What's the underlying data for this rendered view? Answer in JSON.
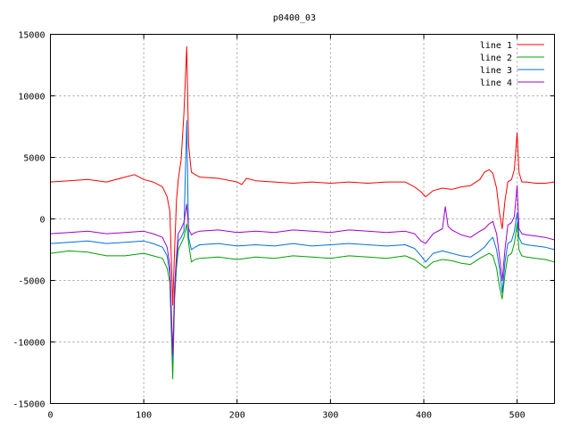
{
  "chart_data": {
    "type": "line",
    "title": "p0400_03",
    "xlabel": "",
    "ylabel": "",
    "xlim": [
      0,
      540
    ],
    "ylim": [
      -15000,
      15000
    ],
    "xticks": [
      0,
      100,
      200,
      300,
      400,
      500
    ],
    "yticks": [
      -15000,
      -10000,
      -5000,
      0,
      5000,
      10000,
      15000
    ],
    "grid": true,
    "legend_position": "top-right",
    "series": [
      {
        "name": "line 1",
        "color": "#ff0000",
        "x": [
          0,
          20,
          40,
          60,
          80,
          90,
          100,
          110,
          120,
          125,
          128,
          131,
          133,
          135,
          137,
          140,
          143,
          146,
          148,
          151,
          155,
          160,
          180,
          200,
          205,
          210,
          220,
          240,
          260,
          280,
          300,
          320,
          340,
          360,
          380,
          390,
          397,
          402,
          410,
          420,
          430,
          440,
          450,
          460,
          465,
          470,
          474,
          478,
          481,
          484,
          487,
          490,
          494,
          497,
          500,
          502,
          505,
          510,
          520,
          530,
          540
        ],
        "y": [
          3000,
          3100,
          3200,
          3000,
          3400,
          3600,
          3200,
          3000,
          2600,
          1800,
          600,
          -7000,
          -2500,
          1500,
          3200,
          4800,
          8500,
          14000,
          6000,
          3800,
          3600,
          3400,
          3300,
          3000,
          2800,
          3300,
          3100,
          3000,
          2900,
          3000,
          2900,
          3000,
          2900,
          3000,
          3000,
          2600,
          2200,
          1800,
          2300,
          2500,
          2400,
          2600,
          2700,
          3200,
          3800,
          4000,
          3700,
          2500,
          500,
          -800,
          1500,
          3000,
          3200,
          4000,
          7000,
          3800,
          3000,
          3000,
          2900,
          2900,
          3000
        ]
      },
      {
        "name": "line 2",
        "color": "#00a000",
        "x": [
          0,
          20,
          40,
          60,
          80,
          100,
          110,
          120,
          125,
          128,
          131,
          133,
          135,
          137,
          140,
          143,
          146,
          148,
          151,
          155,
          160,
          180,
          200,
          220,
          240,
          260,
          280,
          300,
          320,
          340,
          360,
          380,
          390,
          397,
          402,
          410,
          420,
          430,
          440,
          450,
          460,
          465,
          470,
          474,
          478,
          481,
          484,
          487,
          490,
          494,
          497,
          500,
          502,
          505,
          510,
          520,
          530,
          540
        ],
        "y": [
          -2800,
          -2600,
          -2700,
          -3000,
          -3000,
          -2800,
          -3000,
          -3200,
          -4000,
          -5200,
          -13000,
          -6500,
          -4000,
          -2500,
          -2000,
          -1500,
          -400,
          -2000,
          -3500,
          -3300,
          -3200,
          -3100,
          -3300,
          -3100,
          -3200,
          -3000,
          -3100,
          -3200,
          -3000,
          -3100,
          -3200,
          -3000,
          -3300,
          -3700,
          -4000,
          -3500,
          -3300,
          -3400,
          -3600,
          -3700,
          -3200,
          -3000,
          -2800,
          -3000,
          -4000,
          -5500,
          -6500,
          -4500,
          -3000,
          -2800,
          -2000,
          -400,
          -2500,
          -3000,
          -3100,
          -3200,
          -3300,
          -3500
        ]
      },
      {
        "name": "line 3",
        "color": "#0070e0",
        "x": [
          0,
          20,
          40,
          60,
          80,
          100,
          110,
          120,
          125,
          128,
          131,
          133,
          135,
          137,
          140,
          143,
          146,
          148,
          151,
          155,
          160,
          180,
          200,
          220,
          240,
          260,
          280,
          300,
          320,
          340,
          360,
          380,
          390,
          397,
          402,
          410,
          420,
          430,
          440,
          450,
          460,
          465,
          470,
          474,
          478,
          481,
          484,
          487,
          490,
          494,
          497,
          500,
          502,
          505,
          510,
          520,
          530,
          540
        ],
        "y": [
          -2000,
          -1900,
          -1800,
          -2000,
          -1900,
          -1800,
          -2000,
          -2300,
          -3000,
          -4500,
          -11500,
          -6000,
          -3500,
          -1800,
          -1500,
          -1000,
          8000,
          -1500,
          -2500,
          -2300,
          -2100,
          -2000,
          -2200,
          -2100,
          -2200,
          -2000,
          -2200,
          -2100,
          -2000,
          -2100,
          -2200,
          -2100,
          -2400,
          -3000,
          -3500,
          -2800,
          -2600,
          -2800,
          -3000,
          -3100,
          -2600,
          -2300,
          -1800,
          -1500,
          -2500,
          -4000,
          -6000,
          -3500,
          -2000,
          -1800,
          -1000,
          500,
          -1500,
          -2000,
          -2100,
          -2200,
          -2300,
          -2500
        ]
      },
      {
        "name": "line 4",
        "color": "#a000d0",
        "x": [
          0,
          20,
          40,
          60,
          80,
          100,
          110,
          120,
          125,
          128,
          131,
          133,
          135,
          137,
          140,
          143,
          146,
          148,
          151,
          155,
          160,
          180,
          200,
          220,
          240,
          260,
          280,
          300,
          320,
          340,
          360,
          380,
          390,
          397,
          402,
          410,
          420,
          423,
          426,
          430,
          440,
          450,
          460,
          465,
          470,
          474,
          478,
          481,
          484,
          487,
          490,
          494,
          497,
          500,
          502,
          505,
          510,
          520,
          530,
          540
        ],
        "y": [
          -1200,
          -1100,
          -1000,
          -1200,
          -1100,
          -1000,
          -1200,
          -1500,
          -2300,
          -3800,
          -11000,
          -5500,
          -3000,
          -1200,
          -800,
          -300,
          1200,
          -800,
          -1300,
          -1100,
          -1000,
          -900,
          -1100,
          -1000,
          -1100,
          -900,
          -1000,
          -1100,
          -900,
          -1000,
          -1100,
          -1000,
          -1200,
          -1800,
          -2000,
          -1200,
          -800,
          1000,
          -600,
          -900,
          -1300,
          -1500,
          -1000,
          -800,
          -400,
          -200,
          -1200,
          -3000,
          -5000,
          -2500,
          -500,
          -300,
          200,
          2700,
          -800,
          -1200,
          -1300,
          -1400,
          -1500,
          -1700
        ]
      }
    ]
  }
}
